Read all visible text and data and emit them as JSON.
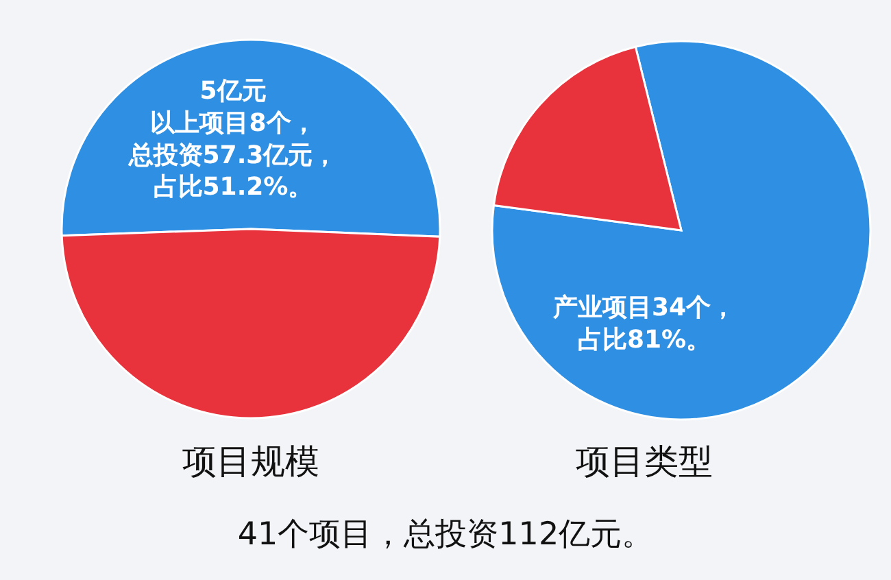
{
  "chart_data": [
    {
      "type": "pie",
      "title": "项目规模",
      "categories": [
        null,
        null
      ],
      "values": [
        51.2,
        48.8
      ],
      "colors": [
        "#2f8fe3",
        "#e8323c"
      ],
      "value_labels": [
        "5亿元以上项目8个，总投资57.3亿元，占比51.2%。",
        null
      ],
      "annotations": [
        "41个项目，总投资112亿元。"
      ]
    },
    {
      "type": "pie",
      "title": "项目类型",
      "categories": [
        null,
        null
      ],
      "values": [
        81,
        19
      ],
      "colors": [
        "#2f8fe3",
        "#e8323c"
      ],
      "value_labels": [
        "产业项目34个，占比81%。",
        null
      ]
    }
  ]
}
